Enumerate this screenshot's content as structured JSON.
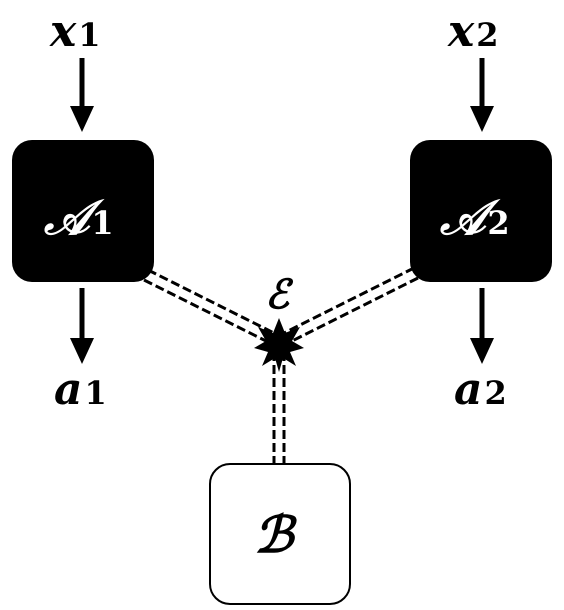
{
  "diagram": {
    "inputs": {
      "x1": {
        "base": "x",
        "sub": "1"
      },
      "x2": {
        "base": "x",
        "sub": "2"
      }
    },
    "outputs": {
      "a1": {
        "base": "a",
        "sub": "1"
      },
      "a2": {
        "base": "a",
        "sub": "2"
      }
    },
    "boxes": {
      "A1": {
        "base": "𝒜",
        "sub": "1"
      },
      "A2": {
        "base": "𝒜",
        "sub": "2"
      },
      "B": {
        "base": "ℬ"
      }
    },
    "source": {
      "label": "ℰ"
    }
  },
  "colors": {
    "ink": "#000000",
    "box_fill_dark": "#000000",
    "box_fill_light": "#ffffff",
    "box_text_dark": "#ffffff",
    "box_text_light": "#000000"
  }
}
